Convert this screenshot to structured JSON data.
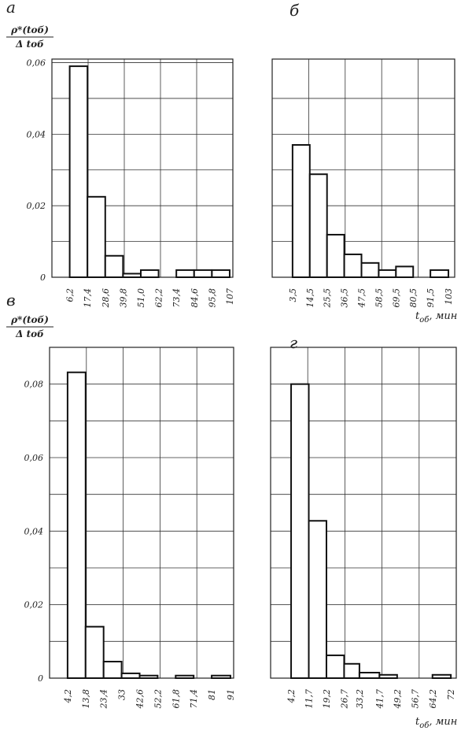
{
  "chart_data": [
    {
      "type": "histogram",
      "panel_label": "а",
      "ylabel_top": "ρ*(tоб)",
      "ylabel_bottom": "Δ tоб",
      "bins": [
        {
          "value": 6.2,
          "label": "6,2"
        },
        {
          "value": 17.4,
          "label": "17,4"
        },
        {
          "value": 28.6,
          "label": "28,6"
        },
        {
          "value": 39.8,
          "label": "39,8"
        },
        {
          "value": 51.0,
          "label": "51,0"
        },
        {
          "value": 62.2,
          "label": "62,2"
        },
        {
          "value": 73.4,
          "label": "73,4"
        },
        {
          "value": 84.6,
          "label": "84,6"
        },
        {
          "value": 95.8,
          "label": "95,8"
        },
        107
      ],
      "values": [
        0.059,
        0.0225,
        0.006,
        0.001,
        0.002,
        0,
        0.002,
        0.002,
        0.002
      ],
      "xlim": [
        -5,
        109
      ],
      "ylim": [
        0,
        0.061
      ],
      "yticks": [
        0,
        {
          "value": 0.02,
          "label": "0,02"
        },
        {
          "value": 0.04,
          "label": "0,04"
        },
        {
          "value": 0.06,
          "label": "0,06"
        }
      ],
      "ygrid": [
        0.01,
        0.03,
        0.05
      ]
    },
    {
      "type": "histogram",
      "panel_label": "б",
      "xlabel": "t",
      "xlabel_sub": "об",
      "xlabel_unit": ", мин",
      "bins": [
        {
          "value": 3.5,
          "label": "3,5"
        },
        {
          "value": 14.5,
          "label": "14,5"
        },
        {
          "value": 25.5,
          "label": "25,5"
        },
        {
          "value": 36.5,
          "label": "36,5"
        },
        {
          "value": 47.5,
          "label": "47,5"
        },
        {
          "value": 58.5,
          "label": "58,5"
        },
        {
          "value": 69.5,
          "label": "69,5"
        },
        {
          "value": 80.5,
          "label": "80,5"
        },
        {
          "value": 91.5,
          "label": "91,5"
        },
        103
      ],
      "values": [
        0.037,
        0.0288,
        0.0119,
        0.0064,
        0.004,
        0.002,
        0.003,
        0,
        0.002
      ],
      "xlim": [
        -9.5,
        107
      ],
      "ylim": [
        0,
        0.061
      ],
      "ygrid": [
        0.01,
        0.02,
        0.03,
        0.04,
        0.05
      ]
    },
    {
      "type": "histogram",
      "panel_label": "в",
      "ylabel_top": "ρ*(tоб)",
      "ylabel_bottom": "Δ tоб",
      "bins": [
        {
          "value": 4.2,
          "label": "4,2"
        },
        {
          "value": 13.8,
          "label": "13,8"
        },
        {
          "value": 23.4,
          "label": "23,4"
        },
        33,
        {
          "value": 42.6,
          "label": "42,6"
        },
        {
          "value": 52.2,
          "label": "52,2"
        },
        {
          "value": 61.8,
          "label": "61,8"
        },
        {
          "value": 71.4,
          "label": "71,4"
        },
        81,
        91
      ],
      "values": [
        0.0832,
        0.014,
        0.0045,
        0.0013,
        0.0007,
        0,
        0.0007,
        0,
        0.0007
      ],
      "xlim": [
        -5.4,
        92.7
      ],
      "ylim": [
        0,
        0.09
      ],
      "yticks": [
        0,
        {
          "value": 0.02,
          "label": "0,02"
        },
        {
          "value": 0.04,
          "label": "0,04"
        },
        {
          "value": 0.06,
          "label": "0,06"
        },
        {
          "value": 0.08,
          "label": "0,08"
        }
      ],
      "ygrid": [
        0.01,
        0.03,
        0.05,
        0.07
      ]
    },
    {
      "type": "histogram",
      "panel_label": "г",
      "xlabel": "t",
      "xlabel_sub": "об",
      "xlabel_unit": ", мин",
      "bins": [
        {
          "value": 4.2,
          "label": "4,2"
        },
        {
          "value": 11.7,
          "label": "11,7"
        },
        {
          "value": 19.2,
          "label": "19,2"
        },
        {
          "value": 26.7,
          "label": "26,7"
        },
        {
          "value": 33.2,
          "label": "33,2"
        },
        {
          "value": 41.7,
          "label": "41,7"
        },
        {
          "value": 49.2,
          "label": "49,2"
        },
        {
          "value": 56.7,
          "label": "56,7"
        },
        {
          "value": 64.2,
          "label": "64,2"
        },
        72
      ],
      "values": [
        0.08,
        0.0428,
        0.0062,
        0.0039,
        0.0015,
        0.0009,
        0,
        0,
        0.0009
      ],
      "xlim": [
        -4.5,
        74.3
      ],
      "ylim": [
        0,
        0.09
      ],
      "ygrid": [
        0.01,
        0.02,
        0.03,
        0.04,
        0.05,
        0.06,
        0.07,
        0.08
      ]
    }
  ]
}
